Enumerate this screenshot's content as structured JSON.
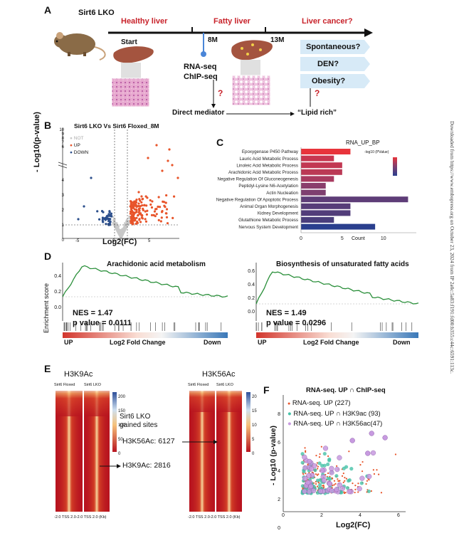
{
  "side_note": "Downloaded from https://www.embopress.org on October 23, 2024 from IP 2a0c:5a83:f191:fd00:b355:c44c:6591:113c.",
  "panel_labels": [
    "A",
    "B",
    "C",
    "D",
    "E",
    "F"
  ],
  "panelA": {
    "mouse_label": "Sirt6 LKO",
    "healthy": "Healthy liver",
    "fatty": "Fatty liver",
    "cancer": "Liver cancer?",
    "start": "Start",
    "t8": "8M",
    "t13": "13M",
    "rnaseq": "RNA-seq",
    "chipseq": "ChIP-seq",
    "q1": "?",
    "q2": "?",
    "direct": "Direct mediator",
    "lipid": "“Lipid rich”",
    "options": [
      "Spontaneous?",
      "DEN?",
      "Obesity?"
    ]
  },
  "panelB": {
    "title": "Sirt6 LKO Vs Sirt6 Floxed_8M",
    "ylabel": "- Log10(p-value)",
    "xlabel": "Log2(FC)",
    "legend": [
      {
        "name": "NOT",
        "color": "#c8c8c8"
      },
      {
        "name": "UP",
        "color": "#e8542a"
      },
      {
        "name": "DOWN",
        "color": "#2c4f8c"
      }
    ],
    "yticks_low": [
      "0",
      "1",
      "2",
      "3",
      "4"
    ],
    "yticks_high": [
      "6",
      "7",
      "8",
      "9",
      "10"
    ],
    "xticks": [
      "-5",
      "0",
      "5"
    ]
  },
  "chart_data": {
    "type": "bar",
    "title": "RNA_UP_BP",
    "xlabel": "Count",
    "legend_title": "-log10 (PValue)",
    "categories": [
      "Epoxygenase P450 Pathway",
      "Lauric Acid Metabolic Process",
      "Linoleic Acid Metabolic Process",
      "Arachidonic Acid Metabolic Process",
      "Negative Regulation Of Gluconeogenesis",
      "Peptidyl-Lysine N6-Acetylation",
      "Actin Nucleation",
      "Negative Regulation Of Apoptotic Process",
      "Animal Organ Morphogenesis",
      "Kidney Development",
      "Glutathione Metabolic Process",
      "Nervous System Development"
    ],
    "values": [
      6,
      4,
      5,
      5,
      4,
      3,
      3,
      13,
      6,
      6,
      4,
      9
    ],
    "colors": [
      "#e8343b",
      "#c83750",
      "#c23852",
      "#bb3955",
      "#a83b60",
      "#8a3e6c",
      "#7e3f70",
      "#5e3d78",
      "#573d79",
      "#523d7a",
      "#4a3e7c",
      "#2a3f8e"
    ],
    "xticks": [
      "0",
      "5",
      "10"
    ],
    "xlim": [
      0,
      14
    ]
  },
  "panelD": {
    "ylabel": "Enrichment score",
    "left": {
      "title": "Arachidonic acid metabolism",
      "nes": "NES = 1.47",
      "pval": "p value = 0.0111",
      "yticks": [
        "0.4",
        "0.2",
        "0.0"
      ],
      "up": "UP",
      "mid": "Log2 Fold Change",
      "down": "Down"
    },
    "right": {
      "title": "Biosynthesis of unsaturated fatty acids",
      "nes": "NES = 1.49",
      "pval": "p value = 0.0296",
      "yticks": [
        "0.6",
        "0.4",
        "0.2",
        "0.0"
      ],
      "up": "UP",
      "mid": "Log2 Fold Change",
      "down": "Down"
    }
  },
  "panelE": {
    "h3k9": "H3K9Ac",
    "h3k56": "H3K56Ac",
    "floxed": "Sirt6 Floxed",
    "lko": "Sirt6 LKO",
    "gained": [
      "Sirt6 LKO",
      "gained sites"
    ],
    "h3k56_count": "H3K56Ac: 6127",
    "h3k9_count": "H3K9Ac: 2816",
    "scale_left": [
      "200",
      "150",
      "100",
      "50",
      "0"
    ],
    "scale_right": [
      "20",
      "15",
      "10",
      "5",
      "0"
    ],
    "axis": "-2.0 TSS 2.0-2.0 TSS 2.0 (Kb)"
  },
  "panelF": {
    "title": "RNA-seq. UP ∩ ChIP-seq",
    "ylabel": "- Log10 (p-value)",
    "xlabel": "Log2(FC)",
    "legend": [
      {
        "name": "RNA-seq. UP (227)",
        "color": "#e8542a"
      },
      {
        "name": "RNA-seq. UP ∩ H3K9ac (93)",
        "color": "#46c2a8"
      },
      {
        "name": "RNA-seq. UP ∩ H3K56ac(47)",
        "color": "#c79ae0"
      }
    ],
    "yticks": [
      "0",
      "2",
      "4",
      "6",
      "8"
    ],
    "xticks": [
      "0",
      "2",
      "4",
      "6"
    ]
  }
}
